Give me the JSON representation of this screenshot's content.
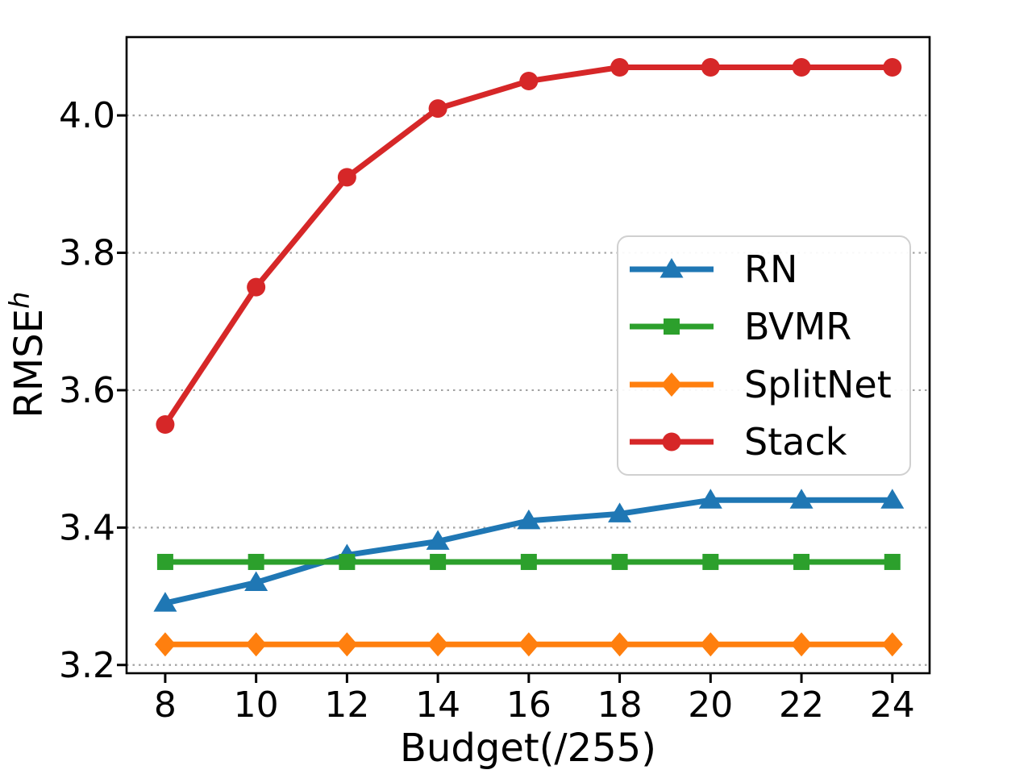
{
  "chart_data": {
    "type": "line",
    "x": [
      8,
      10,
      12,
      14,
      16,
      18,
      20,
      22,
      24
    ],
    "series": [
      {
        "name": "RN",
        "color": "#1f77b4",
        "marker": "triangle",
        "values": [
          3.29,
          3.32,
          3.36,
          3.38,
          3.41,
          3.42,
          3.44,
          3.44,
          3.44
        ]
      },
      {
        "name": "BVMR",
        "color": "#2ca02c",
        "marker": "square",
        "values": [
          3.35,
          3.35,
          3.35,
          3.35,
          3.35,
          3.35,
          3.35,
          3.35,
          3.35
        ]
      },
      {
        "name": "SplitNet",
        "color": "#ff7f0e",
        "marker": "diamond",
        "values": [
          3.23,
          3.23,
          3.23,
          3.23,
          3.23,
          3.23,
          3.23,
          3.23,
          3.23
        ]
      },
      {
        "name": "Stack",
        "color": "#d62728",
        "marker": "circle",
        "values": [
          3.55,
          3.75,
          3.91,
          4.01,
          4.05,
          4.07,
          4.07,
          4.07,
          4.07
        ]
      }
    ],
    "title": "",
    "xlabel": "Budget(/255)",
    "ylabel_base": "RMSE",
    "ylabel_sup": "h",
    "xticks": [
      "8",
      "10",
      "12",
      "14",
      "16",
      "18",
      "20",
      "22",
      "24"
    ],
    "yticks": [
      "3.2",
      "3.4",
      "3.6",
      "3.8",
      "4.0"
    ],
    "xlim": [
      7.15,
      24.82
    ],
    "ylim": [
      3.188,
      4.114
    ],
    "grid": "horizontal-dotted",
    "grid_color": "#a3a3a3",
    "legend_position": "center-right"
  }
}
